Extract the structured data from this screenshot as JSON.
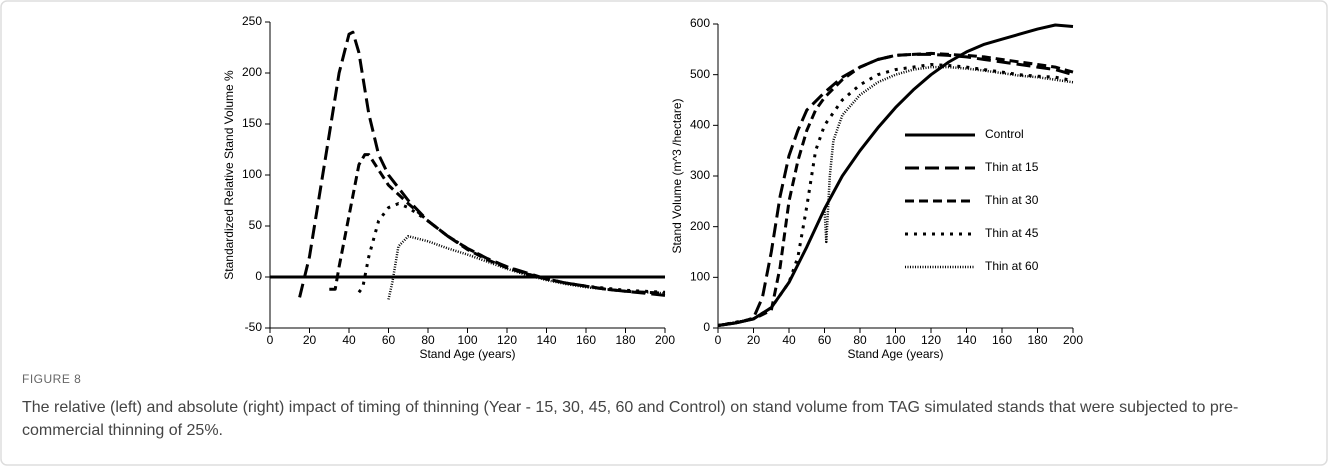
{
  "figure": {
    "label": "FIGURE 8",
    "caption": "The relative (left) and absolute (right) impact of timing of thinning (Year - 15, 30, 45, 60 and Control) on stand volume from TAG simulated stands that were subjected to pre-commercial thinning of 25%."
  },
  "chart_data": [
    {
      "type": "line",
      "x_label": "Stand Age (years)",
      "y_label": "Standardized Relative Stand Volume %",
      "xlim": [
        0,
        200
      ],
      "xticks": [
        0,
        20,
        40,
        60,
        80,
        100,
        120,
        140,
        160,
        180,
        200
      ],
      "ylim": [
        -50,
        250
      ],
      "yticks": [
        -50,
        0,
        50,
        100,
        150,
        200,
        250
      ],
      "series": [
        {
          "color": "#000000",
          "dash": "none",
          "width": 3,
          "x": [
            0,
            200
          ],
          "values": [
            0,
            0
          ]
        },
        {
          "color": "#000000",
          "dash": "14 6",
          "width": 3,
          "x": [
            15,
            20,
            25,
            30,
            35,
            40,
            42,
            45,
            50,
            55,
            60,
            70,
            80,
            90,
            100,
            110,
            120,
            130,
            140,
            150,
            160,
            170,
            180,
            190,
            200
          ],
          "values": [
            -20,
            20,
            80,
            140,
            200,
            238,
            240,
            220,
            160,
            120,
            100,
            75,
            55,
            40,
            28,
            18,
            10,
            4,
            -2,
            -6,
            -9,
            -12,
            -14,
            -16,
            -18
          ]
        },
        {
          "color": "#000000",
          "dash": "9 5",
          "width": 3,
          "x": [
            30,
            33,
            35,
            40,
            45,
            48,
            50,
            55,
            60,
            70,
            80,
            90,
            100,
            110,
            120,
            130,
            140,
            150,
            160,
            170,
            180,
            190,
            200
          ],
          "values": [
            -12,
            -12,
            10,
            60,
            110,
            120,
            120,
            105,
            90,
            72,
            55,
            40,
            27,
            17,
            9,
            3,
            -2,
            -6,
            -9,
            -12,
            -14,
            -15,
            -16
          ]
        },
        {
          "color": "#000000",
          "dash": "3 6",
          "width": 3,
          "x": [
            45,
            47,
            50,
            55,
            60,
            65,
            70,
            80,
            90,
            100,
            110,
            120,
            130,
            140,
            150,
            160,
            170,
            180,
            190,
            200
          ],
          "values": [
            -15,
            -10,
            20,
            55,
            68,
            72,
            68,
            55,
            40,
            28,
            18,
            10,
            3,
            -2,
            -6,
            -9,
            -11,
            -13,
            -14,
            -15
          ]
        },
        {
          "color": "#000000",
          "dash": "1 1.5",
          "width": 2.5,
          "x": [
            60,
            62,
            65,
            70,
            80,
            90,
            100,
            110,
            120,
            130,
            140,
            150,
            160,
            170,
            180,
            190,
            200
          ],
          "values": [
            -22,
            -5,
            30,
            40,
            35,
            28,
            22,
            15,
            8,
            2,
            -3,
            -7,
            -10,
            -12,
            -14,
            -15,
            -16
          ]
        }
      ]
    },
    {
      "type": "line",
      "x_label": "Stand Age (years)",
      "y_label": "Stand Volume (m^3 /hectare)",
      "xlim": [
        0,
        200
      ],
      "xticks": [
        0,
        20,
        40,
        60,
        80,
        100,
        120,
        140,
        160,
        180,
        200
      ],
      "ylim": [
        0,
        600
      ],
      "yticks": [
        0,
        100,
        200,
        300,
        400,
        500,
        600
      ],
      "legend": "center right",
      "series": [
        {
          "name": "Control",
          "color": "#000000",
          "dash": "none",
          "width": 3,
          "x": [
            0,
            10,
            20,
            30,
            40,
            50,
            60,
            70,
            80,
            90,
            100,
            110,
            120,
            130,
            140,
            150,
            160,
            170,
            180,
            190,
            200
          ],
          "values": [
            5,
            10,
            18,
            40,
            90,
            160,
            235,
            300,
            350,
            395,
            435,
            470,
            500,
            525,
            545,
            560,
            570,
            580,
            590,
            598,
            595
          ]
        },
        {
          "name": "Thin at 15",
          "color": "#000000",
          "dash": "14 6",
          "width": 3,
          "x": [
            0,
            10,
            15,
            20,
            25,
            30,
            35,
            40,
            45,
            50,
            60,
            70,
            80,
            90,
            100,
            110,
            120,
            130,
            140,
            150,
            160,
            170,
            180,
            190,
            200
          ],
          "values": [
            5,
            10,
            14,
            20,
            60,
            150,
            260,
            340,
            390,
            430,
            465,
            495,
            515,
            530,
            538,
            540,
            540,
            538,
            535,
            530,
            525,
            520,
            515,
            510,
            500
          ]
        },
        {
          "name": "Thin at 30",
          "color": "#000000",
          "dash": "9 5",
          "width": 3,
          "x": [
            0,
            10,
            20,
            30,
            35,
            40,
            45,
            50,
            55,
            60,
            70,
            80,
            90,
            100,
            110,
            120,
            130,
            140,
            150,
            160,
            170,
            180,
            190,
            200
          ],
          "values": [
            5,
            10,
            18,
            35,
            120,
            250,
            330,
            390,
            430,
            455,
            490,
            515,
            530,
            538,
            540,
            542,
            540,
            538,
            535,
            530,
            525,
            520,
            515,
            505
          ]
        },
        {
          "name": "Thin at 45",
          "color": "#000000",
          "dash": "3 6",
          "width": 3,
          "x": [
            0,
            20,
            30,
            40,
            45,
            50,
            55,
            60,
            70,
            80,
            90,
            100,
            110,
            120,
            130,
            140,
            150,
            160,
            170,
            180,
            190,
            200
          ],
          "values": [
            5,
            18,
            40,
            90,
            140,
            240,
            350,
            400,
            450,
            480,
            500,
            510,
            515,
            520,
            518,
            515,
            510,
            505,
            500,
            497,
            495,
            488
          ]
        },
        {
          "name": "Thin at 60",
          "color": "#000000",
          "dash": "1 1.5",
          "width": 2.5,
          "x": [
            0,
            20,
            30,
            40,
            50,
            60,
            61,
            63,
            65,
            70,
            80,
            90,
            100,
            110,
            120,
            130,
            140,
            150,
            160,
            170,
            180,
            190,
            200
          ],
          "values": [
            5,
            18,
            40,
            90,
            160,
            235,
            170,
            300,
            370,
            420,
            460,
            485,
            500,
            510,
            515,
            515,
            512,
            508,
            503,
            498,
            495,
            490,
            485
          ]
        }
      ]
    }
  ]
}
